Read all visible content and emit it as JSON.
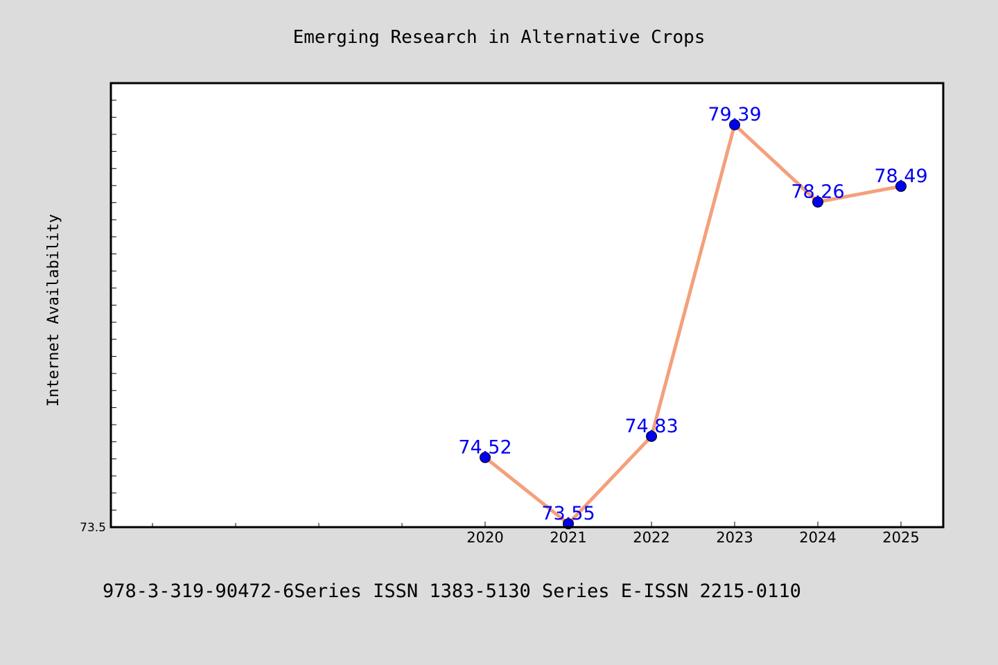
{
  "chart_data": {
    "type": "line",
    "title": "Emerging Research in Alternative Crops",
    "ylabel": "Internet Availability",
    "xlabel": "",
    "x": [
      "2020",
      "2021",
      "2022",
      "2023",
      "2024",
      "2025"
    ],
    "values": [
      74.52,
      73.55,
      74.83,
      79.39,
      78.26,
      78.49
    ],
    "data_labels": [
      "74.52",
      "73.55",
      "74.83",
      "79.39",
      "78.26",
      "78.49"
    ],
    "ylim": [
      73.5,
      80.0
    ],
    "yticks_labeled": [
      "73.5"
    ],
    "grid": false,
    "legend": "none",
    "line_color": "#f4a07c",
    "marker_color": "#0000ee",
    "label_color": "#0000ee"
  },
  "footer": {
    "text": "978-3-319-90472-6Series ISSN 1383-5130 Series E-ISSN 2215-0110"
  },
  "colors": {
    "background": "#dcdcdc",
    "plot_area": "#ffffff"
  }
}
